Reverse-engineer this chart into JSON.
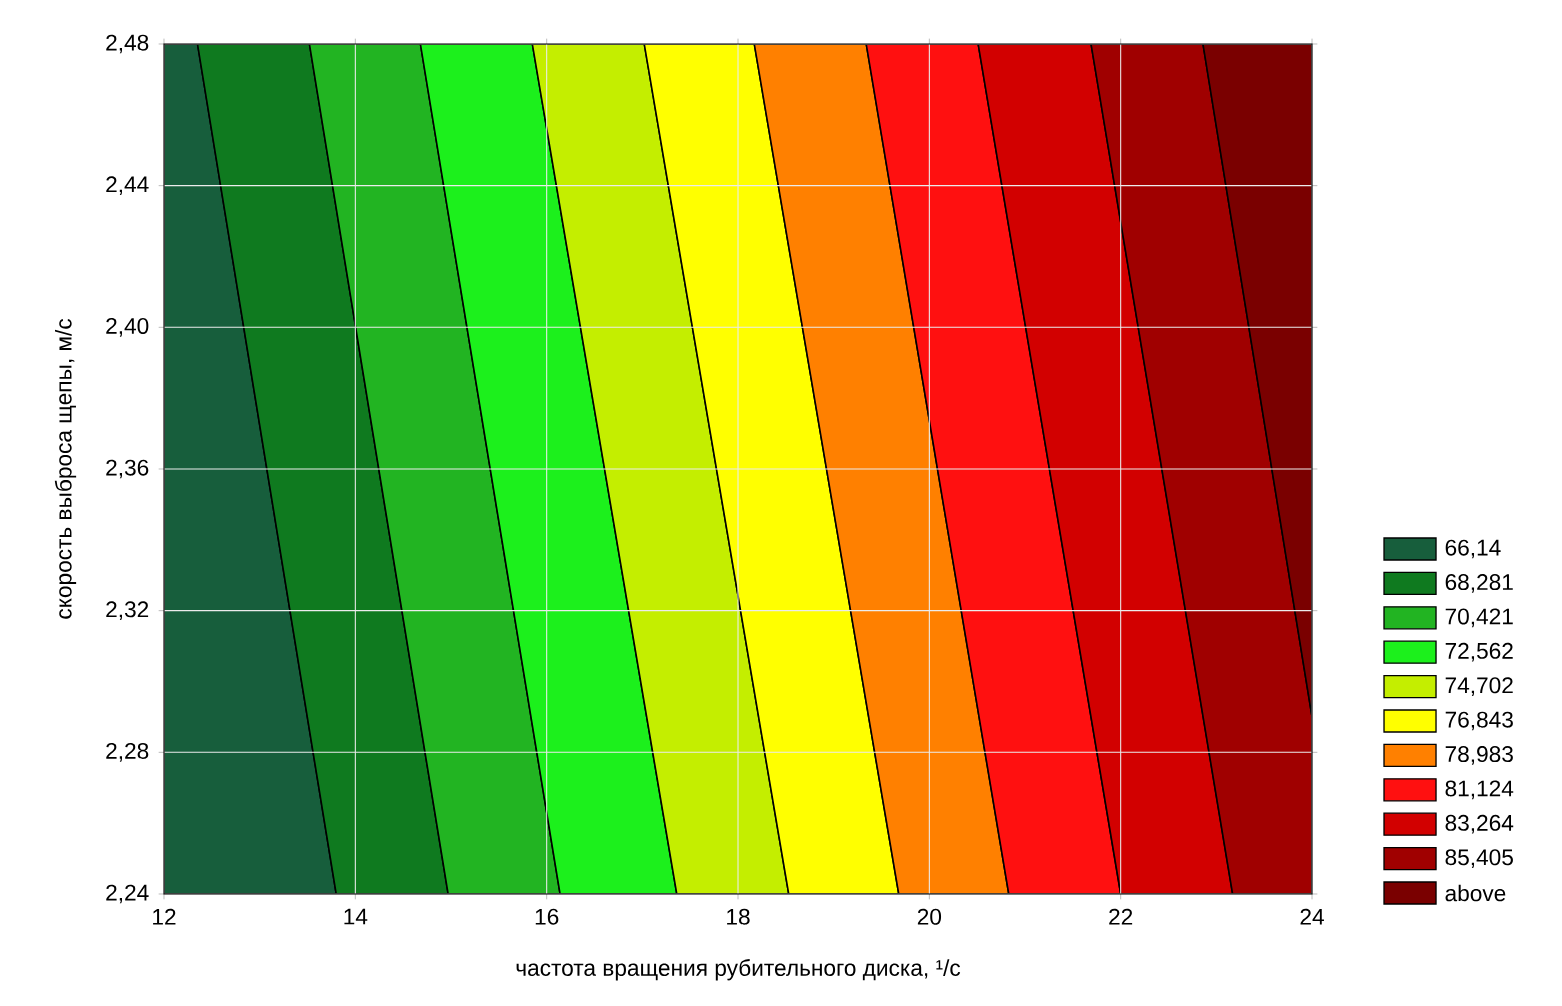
{
  "chart_data": {
    "type": "area",
    "xlabel": "частота вращения рубительного диска, ¹/с",
    "ylabel": "скорость выброса щепы, м/с",
    "xlim": [
      12,
      24
    ],
    "ylim": [
      2.24,
      2.48
    ],
    "xticks": [
      12,
      14,
      16,
      18,
      20,
      22,
      24
    ],
    "yticks": [
      {
        "value": 2.24,
        "label": "2,24"
      },
      {
        "value": 2.28,
        "label": "2,28"
      },
      {
        "value": 2.32,
        "label": "2,32"
      },
      {
        "value": 2.36,
        "label": "2,36"
      },
      {
        "value": 2.4,
        "label": "2,40"
      },
      {
        "value": 2.44,
        "label": "2,44"
      },
      {
        "value": 2.48,
        "label": "2,48"
      }
    ],
    "grid": true,
    "legend": "right",
    "series": [
      {
        "name": "66,14",
        "color": "#175e3c",
        "x": [
          12,
          13.8,
          12.35,
          12
        ],
        "values": [
          2.24,
          2.24,
          2.48,
          2.48
        ]
      },
      {
        "name": "68,281",
        "color": "#0f7a1f",
        "x": [
          13.8,
          14.97,
          13.52,
          12.35
        ],
        "values": [
          2.24,
          2.24,
          2.48,
          2.48
        ]
      },
      {
        "name": "70,421",
        "color": "#22b422",
        "x": [
          14.97,
          16.14,
          14.68,
          13.52
        ],
        "values": [
          2.24,
          2.24,
          2.48,
          2.48
        ]
      },
      {
        "name": "72,562",
        "color": "#1cf01c",
        "x": [
          16.14,
          17.36,
          15.85,
          14.68
        ],
        "values": [
          2.24,
          2.24,
          2.48,
          2.48
        ]
      },
      {
        "name": "74,702",
        "color": "#c4ee00",
        "x": [
          17.36,
          18.53,
          17.02,
          15.85
        ],
        "values": [
          2.24,
          2.24,
          2.48,
          2.48
        ]
      },
      {
        "name": "76,843",
        "color": "#ffff00",
        "x": [
          18.53,
          19.68,
          18.17,
          17.02
        ],
        "values": [
          2.24,
          2.24,
          2.48,
          2.48
        ]
      },
      {
        "name": "78,983",
        "color": "#ff8000",
        "x": [
          19.68,
          20.83,
          19.34,
          18.17
        ],
        "values": [
          2.24,
          2.24,
          2.48,
          2.48
        ]
      },
      {
        "name": "81,124",
        "color": "#ff1010",
        "x": [
          20.83,
          22.0,
          20.51,
          19.34
        ],
        "values": [
          2.24,
          2.24,
          2.48,
          2.48
        ]
      },
      {
        "name": "83,264",
        "color": "#d20000",
        "x": [
          22.0,
          23.17,
          21.69,
          20.51
        ],
        "values": [
          2.24,
          2.24,
          2.48,
          2.48
        ]
      },
      {
        "name": "85,405",
        "color": "#a00000",
        "x": [
          23.17,
          24,
          24,
          22.86,
          21.69
        ],
        "values": [
          2.24,
          2.24,
          2.29,
          2.48,
          2.48
        ]
      },
      {
        "name": "above",
        "color": "#7a0000",
        "x": [
          24,
          24,
          22.86
        ],
        "values": [
          2.29,
          2.48,
          2.48
        ]
      }
    ]
  }
}
